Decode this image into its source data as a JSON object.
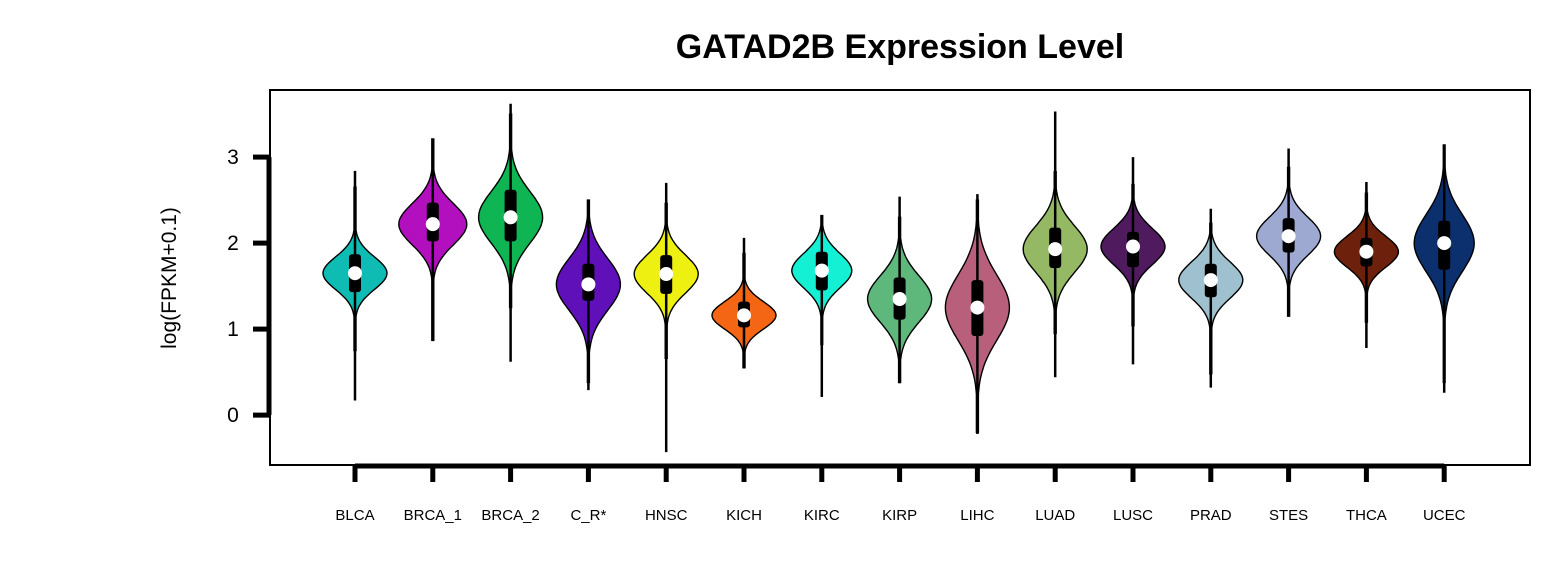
{
  "chart_data": {
    "type": "violin",
    "title": "GATAD2B Expression Level",
    "ylabel": "log(FPKM+0.1)",
    "xlabel": "",
    "ylim": [
      -0.58,
      3.78
    ],
    "yticks": [
      0,
      1,
      2,
      3
    ],
    "categories": [
      "BLCA",
      "BRCA_1",
      "BRCA_2",
      "C_R*",
      "HNSC",
      "KICH",
      "KIRC",
      "KIRP",
      "LIHC",
      "LUAD",
      "LUSC",
      "PRAD",
      "STES",
      "THCA",
      "UCEC"
    ],
    "series": [
      {
        "category": "BLCA",
        "color": "#0fbcb4",
        "median": 1.65,
        "q1": 1.43,
        "q3": 1.87,
        "min": 0.17,
        "max": 2.84,
        "vmin": 0.75,
        "vmax": 2.65,
        "mode": 1.65,
        "spread": 0.19,
        "halfwidth": 32
      },
      {
        "category": "BRCA_1",
        "color": "#b20fbe",
        "median": 2.22,
        "q1": 2.02,
        "q3": 2.47,
        "min": 0.86,
        "max": 3.21,
        "vmin": 0.87,
        "vmax": 3.21,
        "mode": 2.22,
        "spread": 0.24,
        "halfwidth": 34
      },
      {
        "category": "BRCA_2",
        "color": "#0fb553",
        "median": 2.3,
        "q1": 2.02,
        "q3": 2.62,
        "min": 0.62,
        "max": 3.62,
        "vmin": 1.25,
        "vmax": 3.5,
        "mode": 2.3,
        "spread": 0.3,
        "halfwidth": 32
      },
      {
        "category": "C_R*",
        "color": "#6010b8",
        "median": 1.52,
        "q1": 1.33,
        "q3": 1.76,
        "min": 0.29,
        "max": 2.5,
        "vmin": 0.38,
        "vmax": 2.5,
        "mode": 1.52,
        "spread": 0.3,
        "halfwidth": 32
      },
      {
        "category": "HNSC",
        "color": "#eef011",
        "median": 1.64,
        "q1": 1.41,
        "q3": 1.86,
        "min": -0.43,
        "max": 2.7,
        "vmin": 0.66,
        "vmax": 2.46,
        "mode": 1.64,
        "spread": 0.22,
        "halfwidth": 32
      },
      {
        "category": "KICH",
        "color": "#f46514",
        "median": 1.16,
        "q1": 1.02,
        "q3": 1.32,
        "min": 0.55,
        "max": 2.06,
        "vmin": 0.55,
        "vmax": 1.88,
        "mode": 1.16,
        "spread": 0.16,
        "halfwidth": 32
      },
      {
        "category": "KIRC",
        "color": "#14f0d4",
        "median": 1.68,
        "q1": 1.45,
        "q3": 1.9,
        "min": 0.21,
        "max": 2.32,
        "vmin": 0.82,
        "vmax": 2.32,
        "mode": 1.68,
        "spread": 0.2,
        "halfwidth": 30
      },
      {
        "category": "KIRP",
        "color": "#5eb87c",
        "median": 1.35,
        "q1": 1.11,
        "q3": 1.6,
        "min": 0.37,
        "max": 2.54,
        "vmin": 0.38,
        "vmax": 2.3,
        "mode": 1.35,
        "spread": 0.27,
        "halfwidth": 32
      },
      {
        "category": "LIHC",
        "color": "#b85f7c",
        "median": 1.25,
        "q1": 0.92,
        "q3": 1.57,
        "min": -0.22,
        "max": 2.57,
        "vmin": -0.2,
        "vmax": 2.5,
        "mode": 1.25,
        "spread": 0.38,
        "halfwidth": 32
      },
      {
        "category": "LUAD",
        "color": "#94b863",
        "median": 1.93,
        "q1": 1.71,
        "q3": 2.18,
        "min": 0.44,
        "max": 3.53,
        "vmin": 0.95,
        "vmax": 2.83,
        "mode": 1.93,
        "spread": 0.27,
        "halfwidth": 32
      },
      {
        "category": "LUSC",
        "color": "#4f1a5e",
        "median": 1.96,
        "q1": 1.72,
        "q3": 2.13,
        "min": 0.59,
        "max": 3.0,
        "vmin": 1.04,
        "vmax": 2.68,
        "mode": 1.96,
        "spread": 0.21,
        "halfwidth": 32
      },
      {
        "category": "PRAD",
        "color": "#9fc1cf",
        "median": 1.57,
        "q1": 1.37,
        "q3": 1.76,
        "min": 0.32,
        "max": 2.4,
        "vmin": 0.48,
        "vmax": 2.23,
        "mode": 1.57,
        "spread": 0.21,
        "halfwidth": 32
      },
      {
        "category": "STES",
        "color": "#9ea9d1",
        "median": 2.08,
        "q1": 1.89,
        "q3": 2.29,
        "min": 1.15,
        "max": 3.1,
        "vmin": 1.15,
        "vmax": 2.88,
        "mode": 2.08,
        "spread": 0.22,
        "halfwidth": 32
      },
      {
        "category": "THCA",
        "color": "#6d200c",
        "median": 1.9,
        "q1": 1.73,
        "q3": 2.06,
        "min": 0.78,
        "max": 2.71,
        "vmin": 1.08,
        "vmax": 2.58,
        "mode": 1.9,
        "spread": 0.18,
        "halfwidth": 32
      },
      {
        "category": "UCEC",
        "color": "#0c2f6d",
        "median": 2.0,
        "q1": 1.69,
        "q3": 2.26,
        "min": 0.26,
        "max": 3.14,
        "vmin": 0.38,
        "vmax": 3.14,
        "mode": 2.0,
        "spread": 0.33,
        "halfwidth": 30
      }
    ]
  }
}
